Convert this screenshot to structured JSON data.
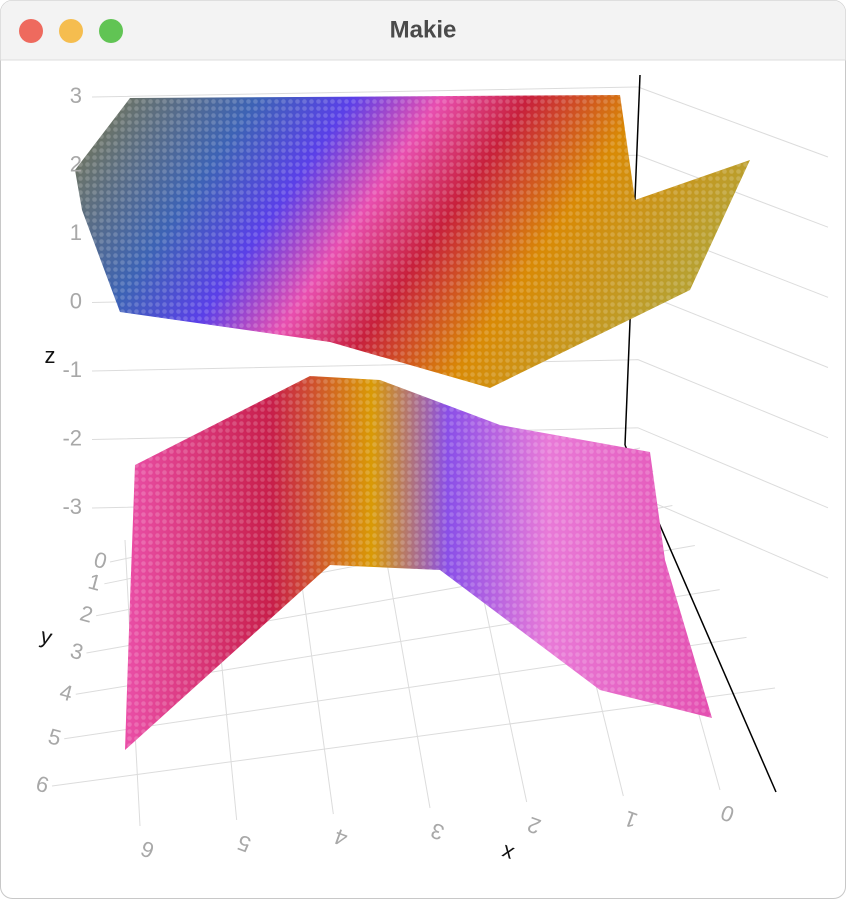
{
  "window": {
    "title": "Makie"
  },
  "chart_data": {
    "type": "scatter3d",
    "x_label": "x",
    "y_label": "y",
    "z_label": "z",
    "xlim": [
      0,
      6
    ],
    "ylim": [
      0,
      6
    ],
    "zlim": [
      -3,
      3
    ],
    "xticks": [
      0,
      1,
      2,
      3,
      4,
      5,
      6
    ],
    "yticks": [
      0,
      1,
      2,
      3,
      4,
      5,
      6
    ],
    "zticks": [
      -3,
      -2,
      -1,
      0,
      1,
      2,
      3
    ]
  }
}
